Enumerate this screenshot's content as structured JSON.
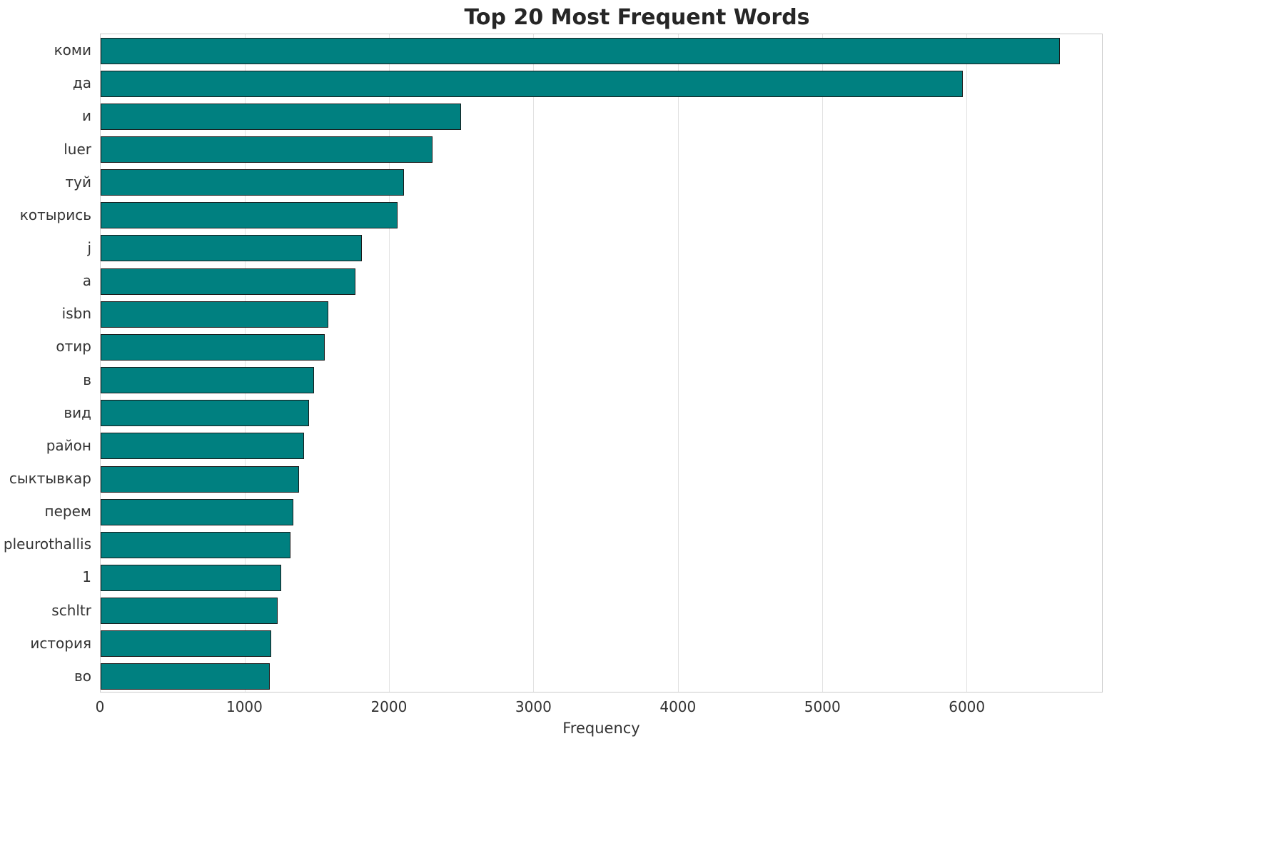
{
  "chart_data": {
    "type": "bar",
    "orientation": "horizontal",
    "title": "Top 20 Most Frequent Words",
    "xlabel": "Frequency",
    "ylabel": "",
    "bar_color": "#008080",
    "bar_edge_color": "#1a1a1a",
    "grid": true,
    "xlim": [
      0,
      6940
    ],
    "xticks": [
      0,
      1000,
      2000,
      3000,
      4000,
      5000,
      6000
    ],
    "categories": [
      "коми",
      "да",
      "и",
      "luer",
      "туй",
      "котырись",
      "j",
      "a",
      "isbn",
      "отир",
      "в",
      "вид",
      "район",
      "сыктывкар",
      "перем",
      "pleurothallis",
      "1",
      "schltr",
      "история",
      "во"
    ],
    "values": [
      6650,
      5975,
      2500,
      2300,
      2100,
      2060,
      1810,
      1765,
      1580,
      1555,
      1480,
      1445,
      1410,
      1375,
      1335,
      1315,
      1250,
      1225,
      1180,
      1170
    ]
  }
}
